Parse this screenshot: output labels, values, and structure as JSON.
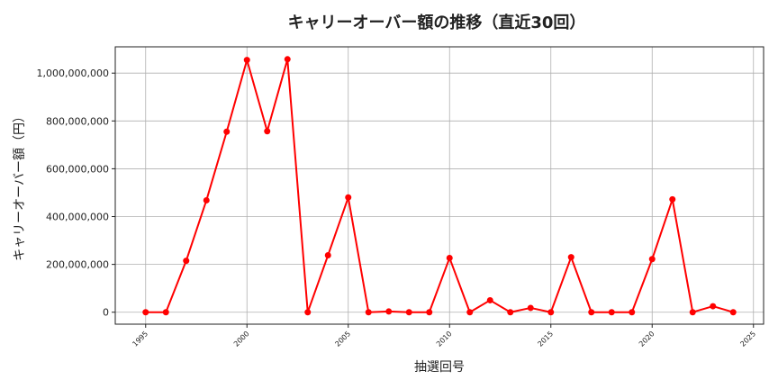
{
  "chart_data": {
    "type": "line",
    "title": "キャリーオーバー額の推移（直近30回）",
    "xlabel": "抽選回号",
    "ylabel": "キャリーオーバー額（円）",
    "xlim": [
      1993.5,
      2025.5
    ],
    "ylim": [
      -50000000,
      1110000000
    ],
    "x_ticks": [
      1995,
      2000,
      2005,
      2010,
      2015,
      2020,
      2025
    ],
    "y_ticks": [
      0,
      200000000,
      400000000,
      600000000,
      800000000,
      1000000000
    ],
    "y_tick_labels": [
      "0",
      "200,000,000",
      "400,000,000",
      "600,000,000",
      "800,000,000",
      "1,000,000,000"
    ],
    "grid": true,
    "series": [
      {
        "color": "#ff0000",
        "x": [
          1995,
          1996,
          1997,
          1998,
          1999,
          2000,
          2001,
          2002,
          2003,
          2004,
          2005,
          2006,
          2007,
          2008,
          2009,
          2010,
          2011,
          2012,
          2013,
          2014,
          2015,
          2016,
          2017,
          2018,
          2019,
          2020,
          2021,
          2022,
          2023,
          2024
        ],
        "values": [
          0,
          0,
          215000000,
          468000000,
          755000000,
          1055000000,
          757000000,
          1058000000,
          0,
          238000000,
          480000000,
          0,
          3000000,
          0,
          0,
          227000000,
          0,
          50000000,
          0,
          18000000,
          0,
          230000000,
          0,
          0,
          0,
          222000000,
          472000000,
          0,
          25000000,
          0
        ]
      }
    ]
  }
}
